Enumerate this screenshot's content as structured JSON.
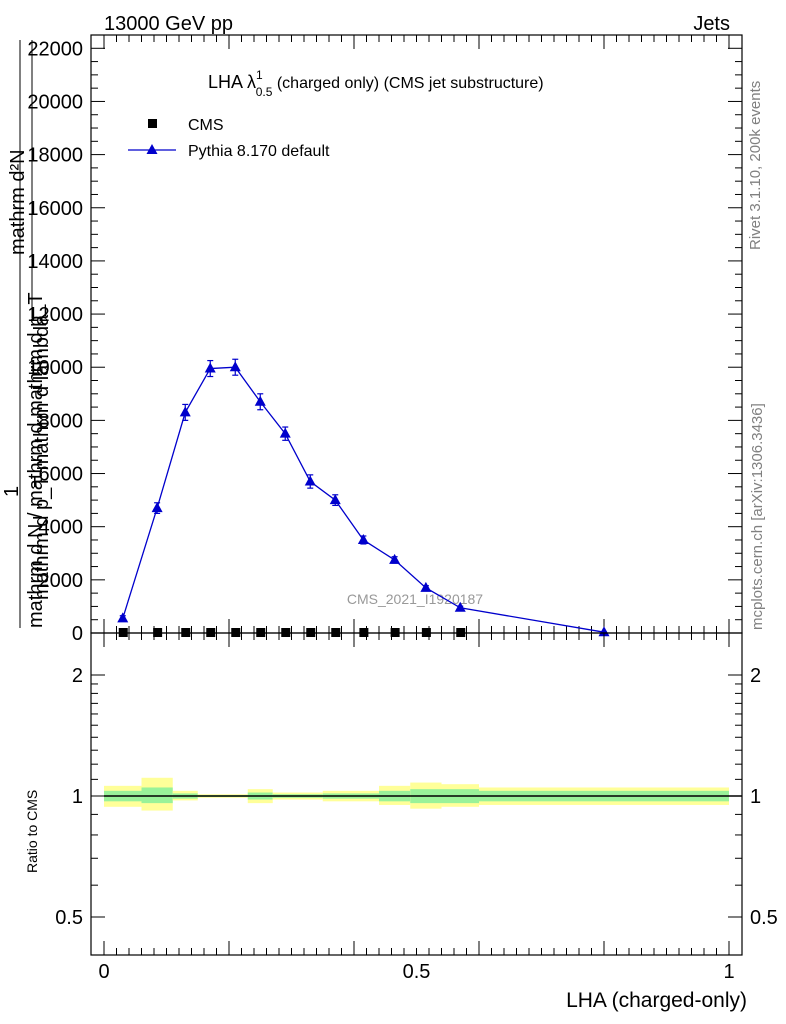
{
  "header": {
    "left": "13000 GeV pp",
    "right": "Jets"
  },
  "side_labels": {
    "rivet": "Rivet 3.1.10,  200k events",
    "mcplots": "mcplots.cern.ch [arXiv:1306.3436]"
  },
  "colors": {
    "mc": "#0000cc",
    "data": "#000000",
    "band_inner": "#99f299",
    "band_outer": "#ffff99"
  },
  "chart_data": [
    {
      "type": "line",
      "panel": "main",
      "title": {
        "base": "LHA λ",
        "sup": "1",
        "sub": "0.5",
        "rest": " (charged only) (CMS jet substructure)"
      },
      "ylabel": {
        "line_top": "mathrm d²N",
        "line_top2": "mathrm d p_T mathrm d lambda",
        "one": "1",
        "line_bottom": "mathrm d N / mathrm d mathrm d p_T"
      },
      "watermark": "CMS_2021_I1920187",
      "xlim": [
        0,
        1
      ],
      "ylim": [
        0,
        22500
      ],
      "yticks": [
        0,
        2000,
        4000,
        6000,
        8000,
        10000,
        12000,
        14000,
        16000,
        18000,
        20000,
        22000
      ],
      "ytick_labels": [
        "0",
        "2000",
        "4000",
        "6000",
        "8000",
        "10000",
        "12000",
        "14000",
        "16000",
        "18000",
        "20000",
        "22000"
      ],
      "legend": {
        "position": "top-left",
        "entries": [
          "CMS",
          "Pythia 8.170 default"
        ]
      },
      "series": [
        {
          "name": "CMS",
          "marker": "square",
          "x": [
            0.03,
            0.085,
            0.13,
            0.17,
            0.21,
            0.25,
            0.29,
            0.33,
            0.37,
            0.415,
            0.465,
            0.515,
            0.57
          ],
          "values": [
            0,
            0,
            0,
            0,
            0,
            0,
            0,
            0,
            0,
            0,
            0,
            0,
            0
          ]
        },
        {
          "name": "Pythia 8.170 default",
          "marker": "triangle",
          "x": [
            0.03,
            0.085,
            0.13,
            0.17,
            0.21,
            0.25,
            0.29,
            0.33,
            0.37,
            0.415,
            0.465,
            0.515,
            0.57,
            0.8
          ],
          "values": [
            550,
            4700,
            8300,
            9950,
            10000,
            8700,
            7500,
            5700,
            5000,
            3500,
            2750,
            1700,
            950,
            30
          ],
          "errors": [
            100,
            200,
            300,
            300,
            300,
            300,
            250,
            250,
            200,
            150,
            120,
            80,
            60,
            10
          ]
        }
      ]
    },
    {
      "type": "area",
      "panel": "ratio",
      "ylabel": "Ratio to CMS",
      "xlabel": "LHA (charged-only)",
      "xlim": [
        0,
        1
      ],
      "ylim": [
        0.3,
        2.3
      ],
      "yscale": "log",
      "yticks": [
        0.5,
        1,
        2
      ],
      "ytick_labels": [
        "0.5",
        "1",
        "2"
      ],
      "xticks": [
        0,
        0.5,
        1
      ],
      "xtick_labels": [
        "0",
        "0.5",
        "1"
      ],
      "bins": [
        {
          "x0": 0.0,
          "x1": 0.06,
          "inner": [
            0.97,
            1.03
          ],
          "outer": [
            0.94,
            1.06
          ]
        },
        {
          "x0": 0.06,
          "x1": 0.11,
          "inner": [
            0.96,
            1.05
          ],
          "outer": [
            0.92,
            1.11
          ]
        },
        {
          "x0": 0.11,
          "x1": 0.15,
          "inner": [
            0.985,
            1.015
          ],
          "outer": [
            0.975,
            1.03
          ]
        },
        {
          "x0": 0.15,
          "x1": 0.23,
          "inner": [
            0.995,
            1.005
          ],
          "outer": [
            0.99,
            1.01
          ]
        },
        {
          "x0": 0.23,
          "x1": 0.27,
          "inner": [
            0.98,
            1.02
          ],
          "outer": [
            0.96,
            1.04
          ]
        },
        {
          "x0": 0.27,
          "x1": 0.35,
          "inner": [
            0.99,
            1.01
          ],
          "outer": [
            0.98,
            1.02
          ]
        },
        {
          "x0": 0.35,
          "x1": 0.44,
          "inner": [
            0.985,
            1.015
          ],
          "outer": [
            0.97,
            1.03
          ]
        },
        {
          "x0": 0.44,
          "x1": 0.49,
          "inner": [
            0.97,
            1.03
          ],
          "outer": [
            0.95,
            1.06
          ]
        },
        {
          "x0": 0.49,
          "x1": 0.54,
          "inner": [
            0.96,
            1.04
          ],
          "outer": [
            0.93,
            1.08
          ]
        },
        {
          "x0": 0.54,
          "x1": 0.6,
          "inner": [
            0.96,
            1.04
          ],
          "outer": [
            0.94,
            1.07
          ]
        },
        {
          "x0": 0.6,
          "x1": 1.0,
          "inner": [
            0.97,
            1.03
          ],
          "outer": [
            0.95,
            1.05
          ]
        }
      ]
    }
  ]
}
